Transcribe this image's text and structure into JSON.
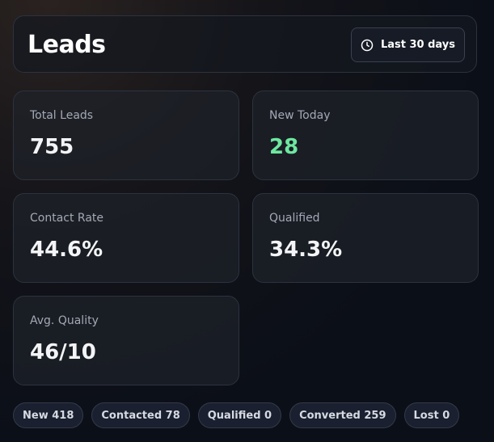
{
  "header": {
    "title": "Leads",
    "range_button": "Last 30 days"
  },
  "metrics": [
    {
      "label": "Total Leads",
      "value": "755"
    },
    {
      "label": "New Today",
      "value": "28"
    },
    {
      "label": "Contact Rate",
      "value": "44.6%"
    },
    {
      "label": "Qualified",
      "value": "34.3%"
    },
    {
      "label": "Avg. Quality",
      "value": "46/10"
    }
  ],
  "status_pills": [
    "New 418",
    "Contacted 78",
    "Qualified 0",
    "Converted 259",
    "Lost 0"
  ]
}
